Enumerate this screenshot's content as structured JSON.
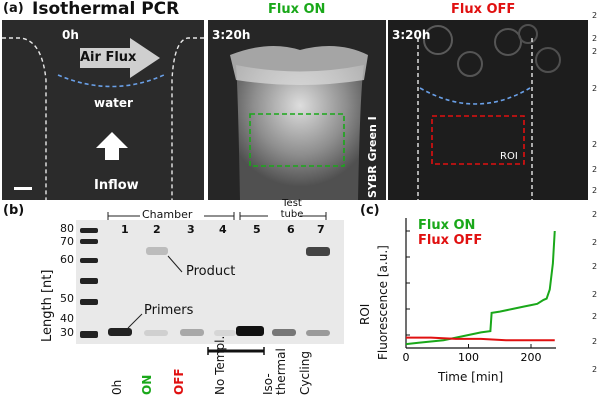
{
  "panel_a": {
    "letter": "(a)",
    "title": "Isothermal PCR",
    "frame1": {
      "time": "0h",
      "air_flux": "Air Flux",
      "water": "water",
      "inflow": "Inflow"
    },
    "frame2": {
      "heading": "Flux ON",
      "time": "3:20h",
      "stain": "SYBR Green I"
    },
    "frame3": {
      "heading": "Flux OFF",
      "time": "3:20h",
      "roi": "ROI"
    },
    "colors": {
      "flux_on": "#1aa81a",
      "flux_off": "#e01010",
      "water_line": "#6aa0e8"
    }
  },
  "panel_b": {
    "letter": "(b)",
    "ylabel": "Length [nt]",
    "ladder_ticks": [
      "80",
      "70",
      "60",
      "50",
      "40",
      "30"
    ],
    "group_chamber": "Chamber",
    "group_test_tube": "Test tube",
    "lane_numbers": [
      "1",
      "2",
      "3",
      "4",
      "5",
      "6",
      "7"
    ],
    "product_label": "Product",
    "primers_label": "Primers",
    "lane_labels": [
      {
        "text": "0h",
        "color": "#111111"
      },
      {
        "text": "ON",
        "color": "#1aa81a"
      },
      {
        "text": "OFF",
        "color": "#e01010"
      },
      {
        "text": "No Templ.",
        "color": "#111111"
      },
      {
        "text": "Iso-thermal",
        "color": "#111111"
      },
      {
        "text": "Cycling",
        "color": "#111111"
      }
    ]
  },
  "panel_c": {
    "letter": "(c)",
    "legend_on": "Flux ON",
    "legend_off": "Flux OFF",
    "ylabel_line1": "ROI",
    "ylabel_line2": "Fluorescence [a.u.]",
    "xlabel": "Time [min]",
    "xticks": [
      "0",
      "100",
      "200"
    ]
  },
  "chart_data": {
    "type": "line",
    "xlabel": "Time [min]",
    "ylabel": "ROI Fluorescence [a.u.]",
    "xlim": [
      0,
      240
    ],
    "ylim": [
      0,
      1
    ],
    "series": [
      {
        "name": "Flux ON",
        "color": "#1aa81a",
        "x": [
          0,
          20,
          40,
          60,
          80,
          100,
          120,
          135,
          137,
          150,
          170,
          190,
          200,
          210,
          220,
          225,
          230,
          235,
          238
        ],
        "y": [
          0.03,
          0.04,
          0.05,
          0.06,
          0.08,
          0.1,
          0.12,
          0.13,
          0.27,
          0.28,
          0.3,
          0.32,
          0.33,
          0.34,
          0.37,
          0.38,
          0.45,
          0.65,
          0.9
        ]
      },
      {
        "name": "Flux OFF",
        "color": "#e01010",
        "x": [
          0,
          40,
          80,
          120,
          160,
          200,
          238
        ],
        "y": [
          0.08,
          0.08,
          0.07,
          0.07,
          0.06,
          0.06,
          0.06
        ]
      }
    ]
  },
  "right_edge_digits": [
    "2",
    "2",
    "2",
    "2",
    "2",
    "2",
    "2",
    "2",
    "2",
    "2",
    "2",
    "2",
    "2",
    "2"
  ]
}
